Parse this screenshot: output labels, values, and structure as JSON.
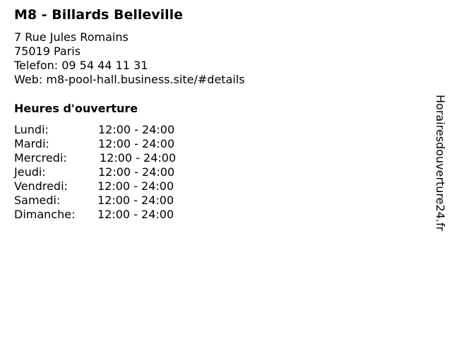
{
  "business": {
    "name": "M8 - Billards Belleville",
    "street": "7 Rue Jules Romains",
    "city": "75019 Paris",
    "phone": "Telefon: 09 54 44 11 31",
    "web": "Web: m8-pool-hall.business.site/#details"
  },
  "hours": {
    "heading": "Heures d'ouverture",
    "days": [
      {
        "day": "Lundi:",
        "time": "12:00 - 24:00"
      },
      {
        "day": "Mardi:",
        "time": "12:00 - 24:00"
      },
      {
        "day": "Mercredi:",
        "time": "12:00 - 24:00"
      },
      {
        "day": "Jeudi:",
        "time": "12:00 - 24:00"
      },
      {
        "day": "Vendredi:",
        "time": "12:00 - 24:00"
      },
      {
        "day": "Samedi:",
        "time": "12:00 - 24:00"
      },
      {
        "day": "Dimanche:",
        "time": "12:00 - 24:00"
      }
    ]
  },
  "watermark": "Horairesdouverture24.fr"
}
